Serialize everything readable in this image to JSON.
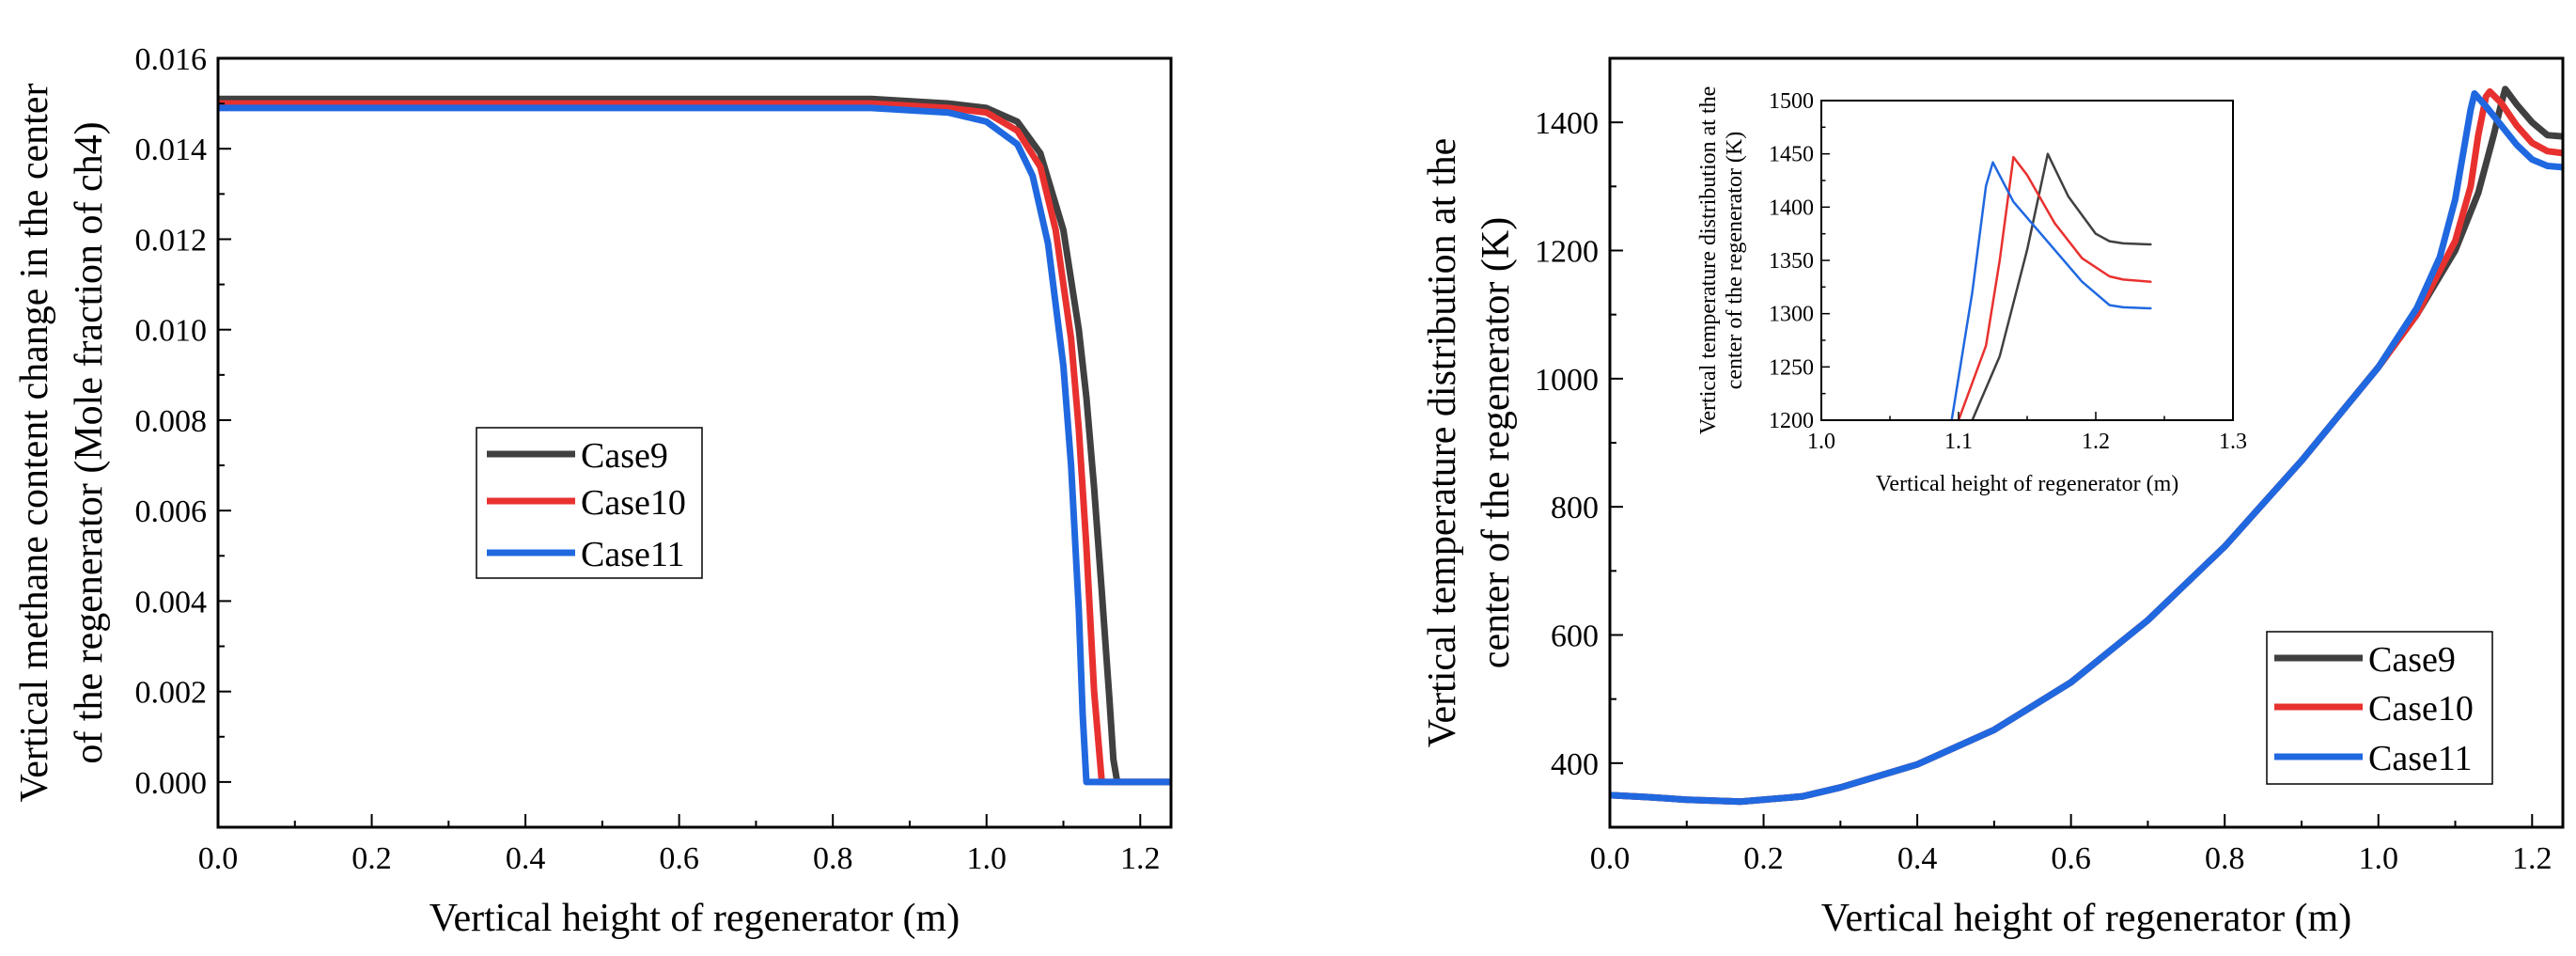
{
  "chart_data": [
    {
      "type": "line",
      "xlabel": "Vertical height of regenerator (m)",
      "ylabel_lines": [
        "Vertical methane content change in the center",
        "of the regenerator (Mole fraction of ch4)"
      ],
      "xlim": [
        0.0,
        1.24
      ],
      "ylim": [
        -0.001,
        0.016
      ],
      "xticks": [
        0.0,
        0.2,
        0.4,
        0.6,
        0.8,
        1.0,
        1.2
      ],
      "xtick_labels": [
        "0.0",
        "0.2",
        "0.4",
        "0.6",
        "0.8",
        "1.0",
        "1.2"
      ],
      "yticks": [
        0.0,
        0.002,
        0.004,
        0.006,
        0.008,
        0.01,
        0.012,
        0.014,
        0.016
      ],
      "ytick_labels": [
        "0.000",
        "0.002",
        "0.004",
        "0.006",
        "0.008",
        "0.010",
        "0.012",
        "0.014",
        "0.016"
      ],
      "legend": {
        "position": "center-left"
      },
      "series": [
        {
          "name": "Case9",
          "color": "#404040",
          "x": [
            0.0,
            0.85,
            0.95,
            1.0,
            1.04,
            1.07,
            1.1,
            1.12,
            1.13,
            1.14,
            1.15,
            1.16,
            1.165,
            1.17,
            1.24
          ],
          "y": [
            0.0151,
            0.0151,
            0.015,
            0.0149,
            0.0146,
            0.0139,
            0.0122,
            0.01,
            0.0085,
            0.0065,
            0.0042,
            0.0018,
            0.0005,
            0.0,
            0.0
          ]
        },
        {
          "name": "Case10",
          "color": "#e8312f",
          "x": [
            0.0,
            0.85,
            0.95,
            1.0,
            1.04,
            1.07,
            1.09,
            1.11,
            1.12,
            1.13,
            1.14,
            1.15,
            1.24
          ],
          "y": [
            0.015,
            0.015,
            0.0149,
            0.0148,
            0.0144,
            0.0136,
            0.0122,
            0.0098,
            0.0078,
            0.0052,
            0.002,
            0.0,
            0.0
          ]
        },
        {
          "name": "Case11",
          "color": "#2068e0",
          "x": [
            0.0,
            0.85,
            0.95,
            1.0,
            1.04,
            1.06,
            1.08,
            1.1,
            1.11,
            1.12,
            1.125,
            1.13,
            1.24
          ],
          "y": [
            0.0149,
            0.0149,
            0.0148,
            0.0146,
            0.0141,
            0.0134,
            0.0119,
            0.0092,
            0.007,
            0.0038,
            0.0015,
            0.0,
            0.0
          ]
        }
      ]
    },
    {
      "type": "line",
      "xlabel": "Vertical height of regenerator (m)",
      "ylabel_lines": [
        "Vertical temperature distribution at the",
        "center of the regenerator (K)"
      ],
      "xlim": [
        0.0,
        1.24
      ],
      "ylim": [
        300,
        1500
      ],
      "xticks": [
        0.0,
        0.2,
        0.4,
        0.6,
        0.8,
        1.0,
        1.2
      ],
      "xtick_labels": [
        "0.0",
        "0.2",
        "0.4",
        "0.6",
        "0.8",
        "1.0",
        "1.2"
      ],
      "yticks": [
        400,
        600,
        800,
        1000,
        1200,
        1400
      ],
      "ytick_labels": [
        "400",
        "600",
        "800",
        "1000",
        "1200",
        "1400"
      ],
      "legend": {
        "position": "bottom-right"
      },
      "series": [
        {
          "name": "Case9",
          "color": "#404040",
          "x": [
            0.0,
            0.05,
            0.1,
            0.17,
            0.25,
            0.3,
            0.4,
            0.5,
            0.6,
            0.7,
            0.8,
            0.9,
            1.0,
            1.05,
            1.1,
            1.13,
            1.15,
            1.16,
            1.165,
            1.18,
            1.2,
            1.22,
            1.24
          ],
          "y": [
            350,
            347,
            343,
            340,
            348,
            362,
            398,
            452,
            526,
            623,
            738,
            872,
            1018,
            1100,
            1200,
            1290,
            1380,
            1430,
            1452,
            1428,
            1400,
            1380,
            1378
          ]
        },
        {
          "name": "Case10",
          "color": "#e8312f",
          "x": [
            0.0,
            0.05,
            0.1,
            0.17,
            0.25,
            0.3,
            0.4,
            0.5,
            0.6,
            0.7,
            0.8,
            0.9,
            1.0,
            1.05,
            1.1,
            1.12,
            1.13,
            1.14,
            1.145,
            1.16,
            1.18,
            1.2,
            1.22,
            1.24
          ],
          "y": [
            350,
            347,
            343,
            340,
            348,
            362,
            398,
            452,
            526,
            623,
            738,
            872,
            1018,
            1100,
            1215,
            1300,
            1380,
            1440,
            1448,
            1430,
            1395,
            1368,
            1355,
            1352
          ]
        },
        {
          "name": "Case11",
          "color": "#2068e0",
          "x": [
            0.0,
            0.05,
            0.1,
            0.17,
            0.25,
            0.3,
            0.4,
            0.5,
            0.6,
            0.7,
            0.8,
            0.9,
            1.0,
            1.05,
            1.08,
            1.1,
            1.11,
            1.12,
            1.125,
            1.14,
            1.16,
            1.18,
            1.2,
            1.22,
            1.24
          ],
          "y": [
            350,
            347,
            343,
            340,
            348,
            362,
            398,
            452,
            526,
            623,
            738,
            872,
            1018,
            1110,
            1190,
            1280,
            1350,
            1420,
            1445,
            1425,
            1395,
            1365,
            1342,
            1332,
            1330
          ]
        }
      ],
      "inset": {
        "xlabel": "Vertical height of regenerator (m)",
        "ylabel_lines": [
          "Vertical temperature distribution at the",
          "center of the regenerator (K)"
        ],
        "xlim": [
          1.0,
          1.3
        ],
        "ylim": [
          1200,
          1500
        ],
        "xticks": [
          1.0,
          1.1,
          1.2,
          1.3
        ],
        "xtick_labels": [
          "1.0",
          "1.1",
          "1.2",
          "1.3"
        ],
        "yticks": [
          1200,
          1250,
          1300,
          1350,
          1400,
          1450,
          1500
        ],
        "ytick_labels": [
          "1200",
          "1250",
          "1300",
          "1350",
          "1400",
          "1450",
          "1500"
        ],
        "series": [
          {
            "name": "Case9",
            "color": "#404040",
            "x": [
              1.11,
              1.13,
              1.15,
              1.16,
              1.165,
              1.18,
              1.2,
              1.21,
              1.22,
              1.24
            ],
            "y": [
              1200,
              1260,
              1360,
              1420,
              1450,
              1410,
              1375,
              1368,
              1366,
              1365
            ]
          },
          {
            "name": "Case10",
            "color": "#e8312f",
            "x": [
              1.1,
              1.12,
              1.13,
              1.14,
              1.15,
              1.17,
              1.19,
              1.21,
              1.22,
              1.24
            ],
            "y": [
              1200,
              1270,
              1350,
              1447,
              1430,
              1385,
              1352,
              1335,
              1332,
              1330
            ]
          },
          {
            "name": "Case11",
            "color": "#2068e0",
            "x": [
              1.095,
              1.11,
              1.12,
              1.125,
              1.14,
              1.17,
              1.19,
              1.21,
              1.22,
              1.24
            ],
            "y": [
              1200,
              1320,
              1420,
              1442,
              1405,
              1360,
              1330,
              1308,
              1306,
              1305
            ]
          }
        ]
      }
    }
  ]
}
